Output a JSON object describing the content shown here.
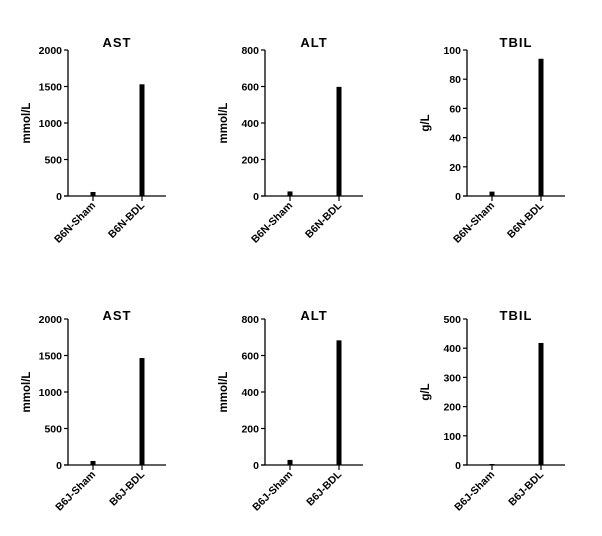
{
  "chart_data": [
    {
      "type": "bar",
      "title": "AST",
      "ylabel": "mmol/L",
      "xlabel": "",
      "categories": [
        "B6N-Sham",
        "B6N-BDL"
      ],
      "values": [
        55,
        1530
      ],
      "ylim": [
        0,
        2000
      ],
      "yticks": [
        "0",
        "500",
        "1000",
        "1500",
        "2000"
      ],
      "grid": false,
      "bar_color": "#000000"
    },
    {
      "type": "bar",
      "title": "ALT",
      "ylabel": "mmol/L",
      "xlabel": "",
      "categories": [
        "B6N-Sham",
        "B6N-BDL"
      ],
      "values": [
        25,
        598
      ],
      "ylim": [
        0,
        800
      ],
      "yticks": [
        "0",
        "200",
        "400",
        "600",
        "800"
      ],
      "grid": false,
      "bar_color": "#000000"
    },
    {
      "type": "bar",
      "title": "TBIL",
      "ylabel": "g/L",
      "xlabel": "",
      "categories": [
        "B6N-Sham",
        "B6N-BDL"
      ],
      "values": [
        3,
        94
      ],
      "ylim": [
        0,
        100
      ],
      "yticks": [
        "0",
        "20",
        "40",
        "60",
        "80",
        "100"
      ],
      "grid": false,
      "bar_color": "#000000"
    },
    {
      "type": "bar",
      "title": "AST",
      "ylabel": "mmol/L",
      "xlabel": "",
      "categories": [
        "B6J-Sham",
        "B6J-BDL"
      ],
      "values": [
        55,
        1465
      ],
      "ylim": [
        0,
        2000
      ],
      "yticks": [
        "0",
        "500",
        "1000",
        "1500",
        "2000"
      ],
      "grid": false,
      "bar_color": "#000000"
    },
    {
      "type": "bar",
      "title": "ALT",
      "ylabel": "mmol/L",
      "xlabel": "",
      "categories": [
        "B6J-Sham",
        "B6J-BDL"
      ],
      "values": [
        28,
        683
      ],
      "ylim": [
        0,
        800
      ],
      "yticks": [
        "0",
        "200",
        "400",
        "600",
        "800"
      ],
      "grid": false,
      "bar_color": "#000000"
    },
    {
      "type": "bar",
      "title": "TBIL",
      "ylabel": "g/L",
      "xlabel": "",
      "categories": [
        "B6J-Sham",
        "B6J-BDL"
      ],
      "values": [
        3,
        418
      ],
      "ylim": [
        0,
        500
      ],
      "yticks": [
        "0",
        "100",
        "200",
        "300",
        "400",
        "500"
      ],
      "grid": false,
      "bar_color": "#000000"
    }
  ]
}
